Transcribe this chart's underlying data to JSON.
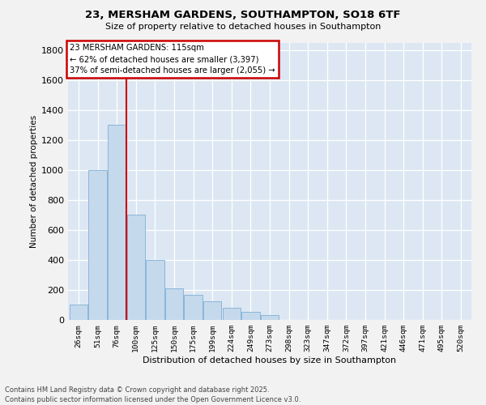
{
  "title_line1": "23, MERSHAM GARDENS, SOUTHAMPTON, SO18 6TF",
  "title_line2": "Size of property relative to detached houses in Southampton",
  "xlabel": "Distribution of detached houses by size in Southampton",
  "ylabel": "Number of detached properties",
  "categories": [
    "26sqm",
    "51sqm",
    "76sqm",
    "100sqm",
    "125sqm",
    "150sqm",
    "175sqm",
    "199sqm",
    "224sqm",
    "249sqm",
    "273sqm",
    "298sqm",
    "323sqm",
    "347sqm",
    "372sqm",
    "397sqm",
    "421sqm",
    "446sqm",
    "471sqm",
    "495sqm",
    "520sqm"
  ],
  "values": [
    100,
    1000,
    1300,
    700,
    400,
    210,
    165,
    125,
    80,
    55,
    30,
    0,
    0,
    0,
    0,
    0,
    0,
    0,
    0,
    0,
    0
  ],
  "bar_color": "#c5d9ec",
  "bar_edge_color": "#7fafd4",
  "vline_color": "#cc0000",
  "vline_x": 2.5,
  "annotation_text": "23 MERSHAM GARDENS: 115sqm\n← 62% of detached houses are smaller (3,397)\n37% of semi-detached houses are larger (2,055) →",
  "ylim_max": 1850,
  "yticks": [
    0,
    200,
    400,
    600,
    800,
    1000,
    1200,
    1400,
    1600,
    1800
  ],
  "bg_color": "#dce7f3",
  "grid_color": "#ffffff",
  "fig_bg": "#f2f2f2",
  "footer": "Contains HM Land Registry data © Crown copyright and database right 2025.\nContains public sector information licensed under the Open Government Licence v3.0."
}
